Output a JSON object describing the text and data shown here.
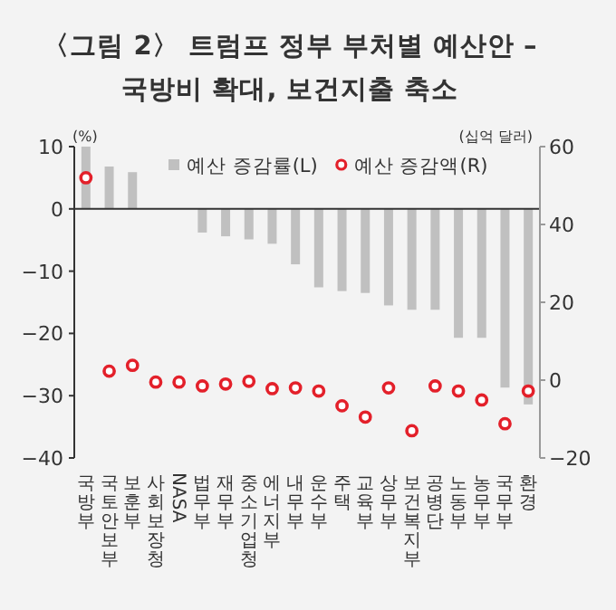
{
  "chart_data": {
    "type": "bar",
    "title": "〈그림 2〉 트럼프 정부 부처별 예산안 –\n국방비 확대, 보건지출 축소",
    "categories": [
      "국방부",
      "국토안보부",
      "보훈부",
      "사회보장청",
      "NASA",
      "법무부",
      "재무부",
      "중소기업청",
      "에너지부",
      "내무부",
      "운수부",
      "주택",
      "교육부",
      "상무부",
      "보건복지부",
      "공병단",
      "노동부",
      "농무부",
      "국무부",
      "환경"
    ],
    "series": [
      {
        "name": "예산 증감률(L)",
        "axis": "y",
        "color": "#c0c0c0",
        "values": [
          10,
          6.8,
          5.9,
          0,
          0,
          -3.8,
          -4.4,
          -4.9,
          -5.6,
          -8.9,
          -12.6,
          -13.2,
          -13.5,
          -15.5,
          -16.2,
          -16.2,
          -20.7,
          -20.7,
          -28.7,
          -31.4
        ]
      },
      {
        "name": "예산 증감액(R)",
        "type": "scatter",
        "axis": "y2",
        "marker": "circle",
        "color": "#e3202a",
        "values": [
          52,
          2.3,
          3.8,
          -0.5,
          -0.5,
          -1.5,
          -1,
          -0.3,
          -2.2,
          -2,
          -2.8,
          -6.6,
          -9.5,
          -2,
          -13,
          -1.5,
          -2.8,
          -5.1,
          -11.2,
          -2.8
        ]
      }
    ],
    "ylabel": "(%)",
    "y2label": "(십억 달러)",
    "ylim": [
      -40,
      10
    ],
    "yticks": [
      -40,
      -30,
      -20,
      -10,
      0,
      10
    ],
    "y2lim": [
      -20,
      60
    ],
    "y2ticks": [
      -20,
      0,
      20,
      40,
      60
    ],
    "legend": "top"
  }
}
